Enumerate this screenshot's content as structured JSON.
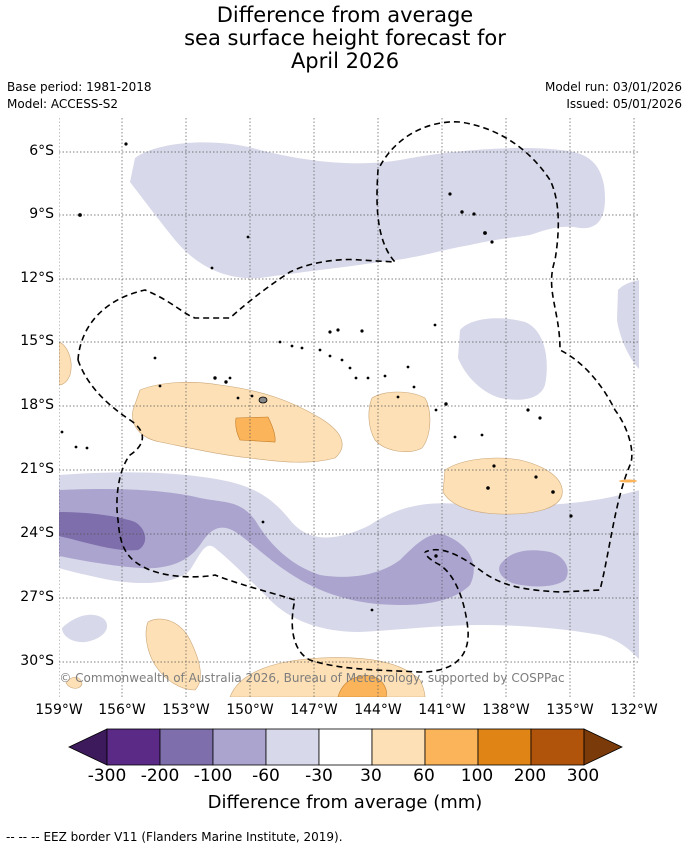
{
  "title": {
    "line1": "Difference from average",
    "line2": "sea surface height forecast for",
    "line3": "April 2026"
  },
  "meta": {
    "base_period": "Base period: 1981-2018",
    "model": "Model: ACCESS-S2",
    "model_run": "Model run: 03/01/2026",
    "issued": "Issued: 05/01/2026"
  },
  "map": {
    "lat_labels": [
      "6°S",
      "9°S",
      "12°S",
      "15°S",
      "18°S",
      "21°S",
      "24°S",
      "27°S",
      "30°S"
    ],
    "lon_labels": [
      "159°W",
      "156°W",
      "153°W",
      "150°W",
      "147°W",
      "144°W",
      "141°W",
      "138°W",
      "135°W",
      "132°W"
    ],
    "lat_range": [
      -32.5,
      -4.5
    ],
    "lon_range": [
      -159,
      -131.8
    ],
    "copyright": "© Commonwealth of Australia 2026, Bureau of Meteorology, supported by COSPPac"
  },
  "colorbar": {
    "title": "Difference from average (mm)",
    "labels": [
      "-300",
      "-200",
      "-100",
      "-60",
      "-30",
      "30",
      "60",
      "100",
      "200",
      "300"
    ],
    "colors": [
      "#3d1a5c",
      "#5b2a86",
      "#7e6eab",
      "#aba4cf",
      "#d7d8e9",
      "#ffffff",
      "#fde0b6",
      "#fbb45a",
      "#e08416",
      "#b0540b",
      "#7a3a09"
    ]
  },
  "legend": {
    "eez_marker": "-- -- --",
    "eez_label": "EEZ border V11 (Flanders Marine Institute, 2019)."
  }
}
